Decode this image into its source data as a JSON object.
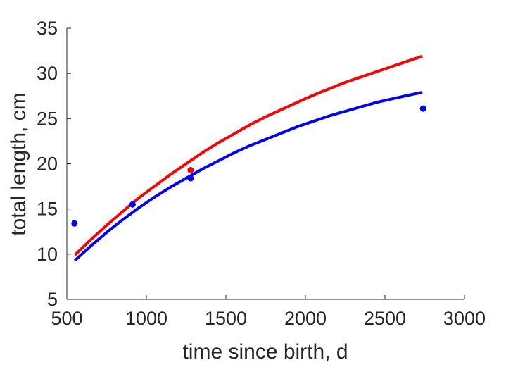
{
  "chart_data": {
    "type": "line",
    "title": "",
    "xlabel": "time since birth, d",
    "ylabel": "total length, cm",
    "xlim": [
      500,
      3000
    ],
    "ylim": [
      5,
      35
    ],
    "x_ticks": [
      500,
      1000,
      1500,
      2000,
      2500,
      3000
    ],
    "y_ticks": [
      5,
      10,
      15,
      20,
      25,
      30,
      35
    ],
    "grid": false,
    "box": false,
    "series": [
      {
        "kind": "line",
        "color": "#ff0000",
        "x": [
          550,
          650,
          750,
          850,
          950,
          1050,
          1150,
          1250,
          1350,
          1450,
          1550,
          1650,
          1750,
          1850,
          1950,
          2050,
          2150,
          2250,
          2350,
          2450,
          2550,
          2650,
          2735
        ],
        "y": [
          9.9,
          11.6,
          13.2,
          14.7,
          16.2,
          17.5,
          18.8,
          20.0,
          21.2,
          22.3,
          23.3,
          24.3,
          25.2,
          26.0,
          26.8,
          27.6,
          28.3,
          29.0,
          29.6,
          30.2,
          30.8,
          31.4,
          31.9
        ]
      },
      {
        "kind": "line",
        "color": "#0000ff",
        "x": [
          550,
          650,
          750,
          850,
          950,
          1050,
          1150,
          1250,
          1350,
          1450,
          1550,
          1650,
          1750,
          1850,
          1950,
          2050,
          2150,
          2250,
          2350,
          2450,
          2550,
          2650,
          2735
        ],
        "y": [
          9.3,
          10.9,
          12.4,
          13.8,
          15.1,
          16.3,
          17.4,
          18.4,
          19.4,
          20.3,
          21.2,
          22.0,
          22.7,
          23.4,
          24.1,
          24.7,
          25.3,
          25.8,
          26.3,
          26.8,
          27.2,
          27.6,
          27.9
        ]
      },
      {
        "kind": "points",
        "color": "#ff0000",
        "x": [
          1278
        ],
        "y": [
          19.3
        ]
      },
      {
        "kind": "points",
        "color": "#0000ff",
        "x": [
          548,
          913,
          1278,
          2740
        ],
        "y": [
          13.4,
          15.5,
          18.4,
          26.1
        ]
      }
    ]
  }
}
